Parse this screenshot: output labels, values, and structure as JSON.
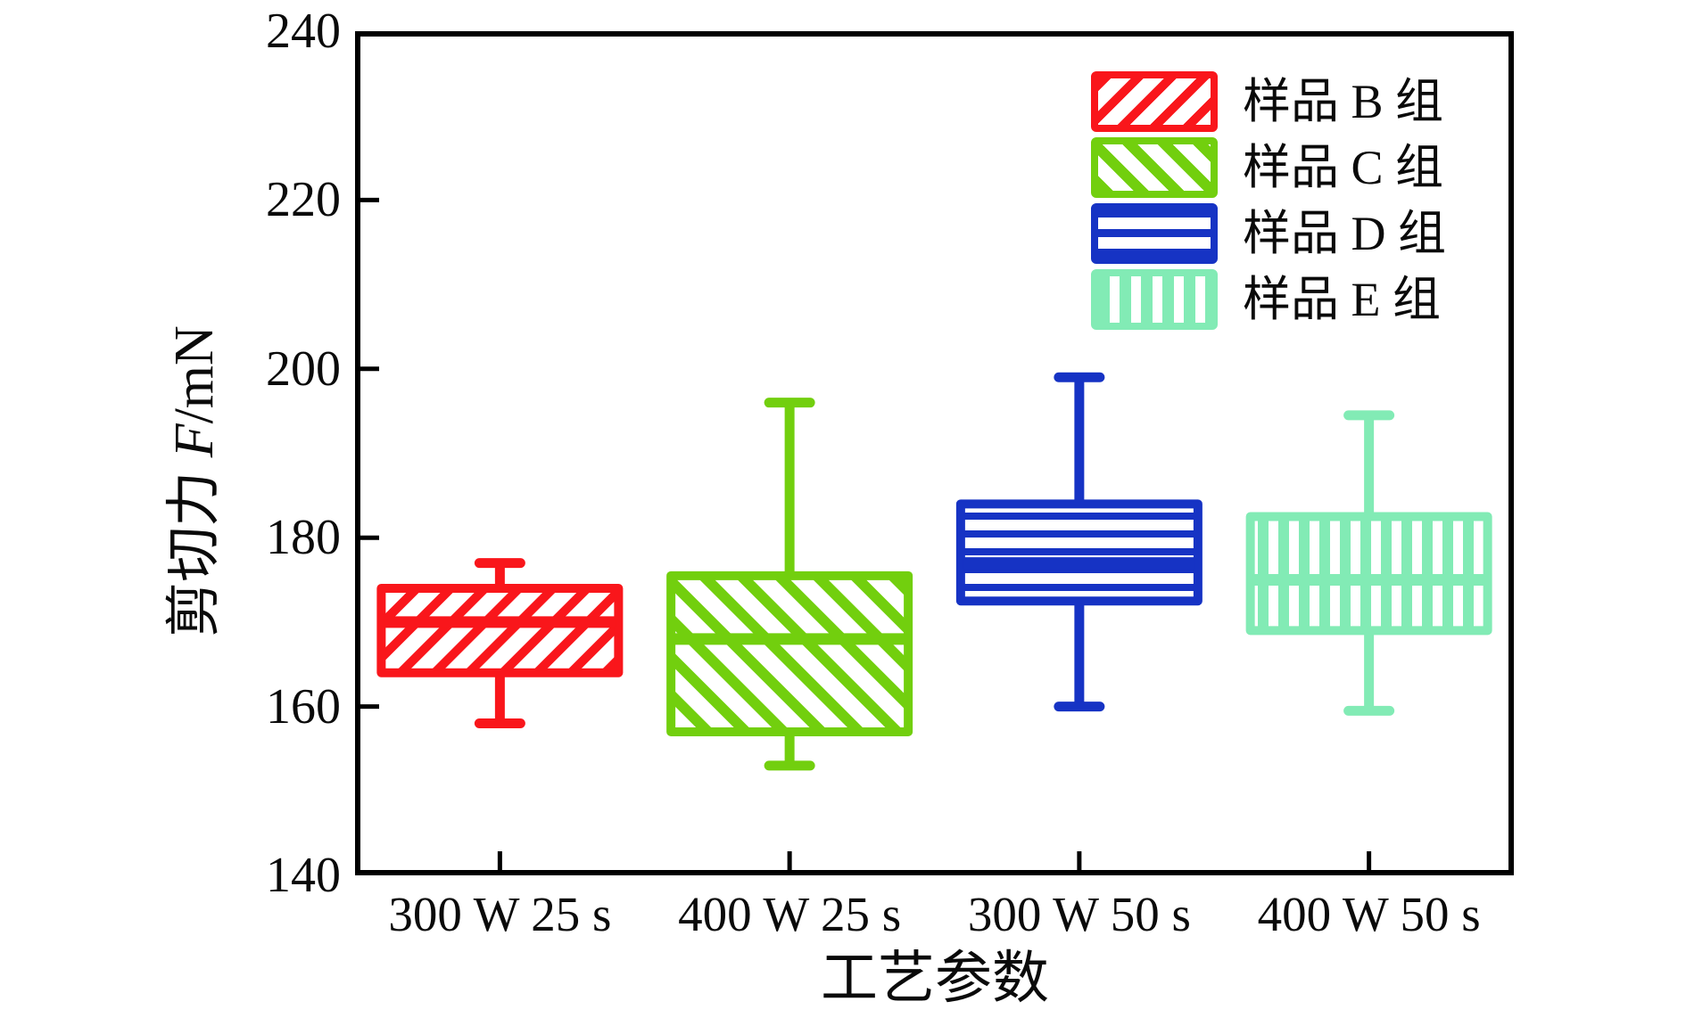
{
  "figure": {
    "background": "#ffffff",
    "text_color": "#0a0a0a"
  },
  "axes": {
    "y_title_prefix": "剪切力 ",
    "y_title_symbol": "F",
    "y_title_unit": "/mN",
    "x_title": "工艺参数"
  },
  "legend": {
    "position": "top-right",
    "items": [
      {
        "label": "样品 B 组",
        "color": "#f9161b",
        "hatch": "diagonal-forward"
      },
      {
        "label": "样品 C 组",
        "color": "#72cf0e",
        "hatch": "diagonal-back"
      },
      {
        "label": "样品 D 组",
        "color": "#1633c4",
        "hatch": "horizontal"
      },
      {
        "label": "样品 E 组",
        "color": "#82ebb5",
        "hatch": "vertical"
      }
    ]
  },
  "chart_data": {
    "type": "boxplot",
    "title": "",
    "xlabel": "工艺参数",
    "ylabel": "剪切力 F/mN",
    "categories": [
      "300 W 25 s",
      "400 W 25 s",
      "300 W 50 s",
      "400 W 50 s"
    ],
    "ylim": [
      140,
      240
    ],
    "yticks": [
      140,
      160,
      180,
      200,
      220,
      240
    ],
    "ytick_labels": [
      "240",
      "220",
      "200",
      "180",
      "160",
      "140"
    ],
    "grid": false,
    "legend_position": "top-right",
    "series": [
      {
        "name": "样品 B 组",
        "category": "300 W 25 s",
        "color": "#f9161b",
        "hatch": "diagonal-forward",
        "whisker_low": 158,
        "q1": 164,
        "median": 170,
        "q3": 174,
        "whisker_high": 177
      },
      {
        "name": "样品 C 组",
        "category": "400 W 25 s",
        "color": "#72cf0e",
        "hatch": "diagonal-back",
        "whisker_low": 153,
        "q1": 157,
        "median": 168,
        "q3": 175.5,
        "whisker_high": 196
      },
      {
        "name": "样品 D 组",
        "category": "300 W 50 s",
        "color": "#1633c4",
        "hatch": "horizontal",
        "whisker_low": 160,
        "q1": 172.5,
        "median": 177,
        "q3": 184,
        "whisker_high": 199
      },
      {
        "name": "样品 E 组",
        "category": "400 W 50 s",
        "color": "#82ebb5",
        "hatch": "vertical",
        "whisker_low": 159.5,
        "q1": 169,
        "median": 175,
        "q3": 182.5,
        "whisker_high": 194.5
      }
    ]
  }
}
